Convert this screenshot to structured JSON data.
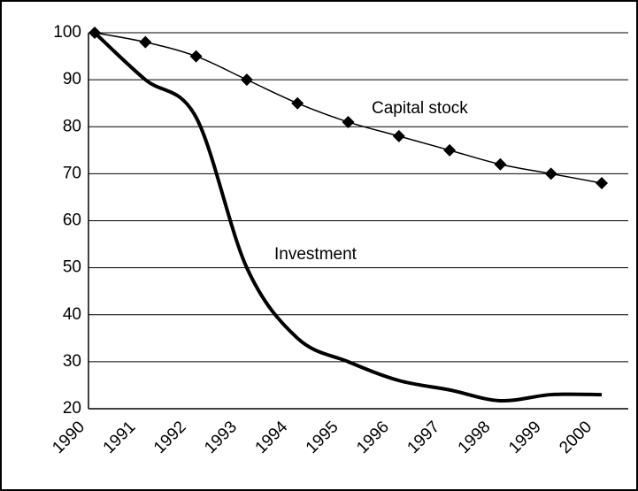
{
  "chart_data": {
    "type": "line",
    "categories": [
      "1990",
      "1991",
      "1992",
      "1993",
      "1994",
      "1995",
      "1996",
      "1997",
      "1998",
      "1999",
      "2000"
    ],
    "series": [
      {
        "name": "Capital stock",
        "color": "#000000",
        "values": [
          100,
          98,
          95,
          90,
          85,
          81,
          78,
          75,
          72,
          70,
          68
        ]
      },
      {
        "name": "Investment",
        "color": "#000000",
        "values": [
          100,
          90,
          82,
          50,
          35,
          30,
          26,
          24,
          21.7,
          23,
          23
        ]
      }
    ],
    "ylim": [
      20,
      100
    ],
    "yticks": [
      20,
      30,
      40,
      50,
      60,
      70,
      80,
      90,
      100
    ],
    "grid": true
  }
}
